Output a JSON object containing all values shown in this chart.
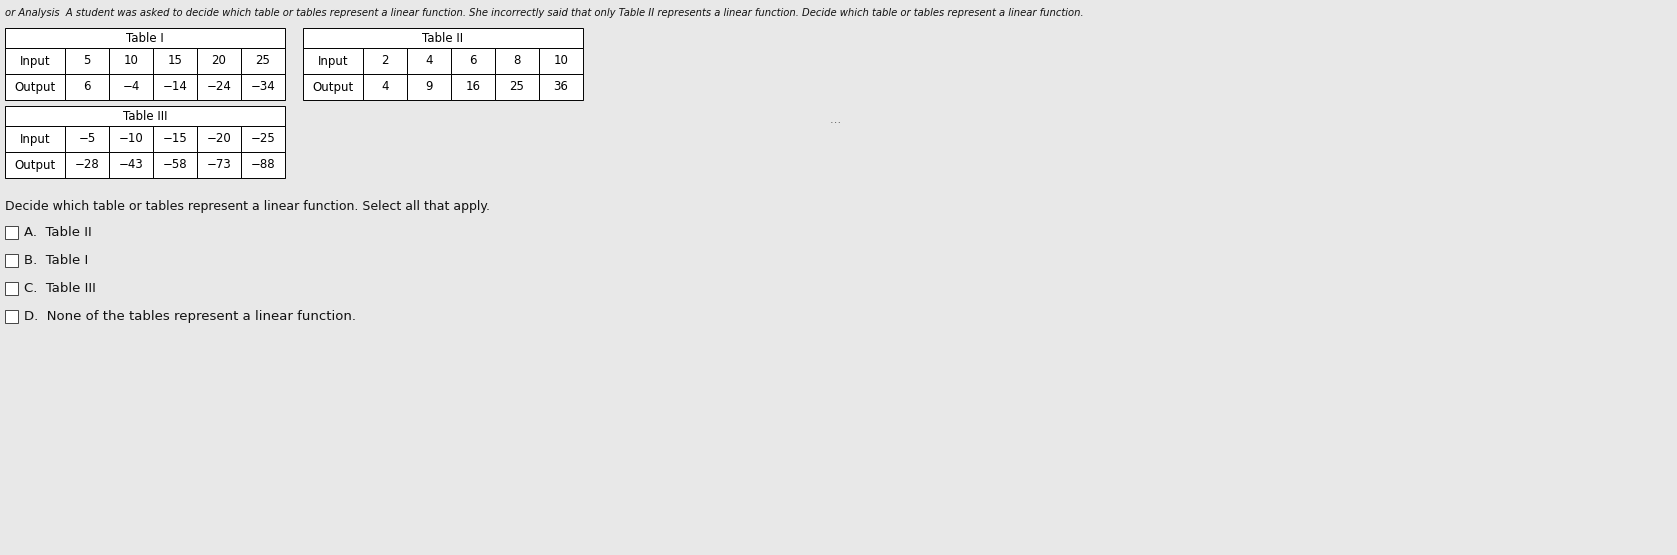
{
  "header_text": "or Analysis  A student was asked to decide which table or tables represent a linear function. She incorrectly said that only Table II represents a linear function. Decide which table or tables represent a linear function.",
  "background_color": "#e8e8e8",
  "table1": {
    "title": "Table I",
    "data": {
      "Input": [
        5,
        10,
        15,
        20,
        25
      ],
      "Output": [
        6,
        -4,
        -14,
        -24,
        -34
      ]
    }
  },
  "table2": {
    "title": "Table II",
    "data": {
      "Input": [
        2,
        4,
        6,
        8,
        10
      ],
      "Output": [
        4,
        9,
        16,
        25,
        36
      ]
    }
  },
  "table3": {
    "title": "Table III",
    "data": {
      "Input": [
        -5,
        -10,
        -15,
        -20,
        -25
      ],
      "Output": [
        -28,
        -43,
        -58,
        -73,
        -88
      ]
    }
  },
  "question_text": "Decide which table or tables represent a linear function. Select all that apply.",
  "choices": [
    "A.  Table II",
    "B.  Table I",
    "C.  Table III",
    "D.  None of the tables represent a linear function."
  ]
}
